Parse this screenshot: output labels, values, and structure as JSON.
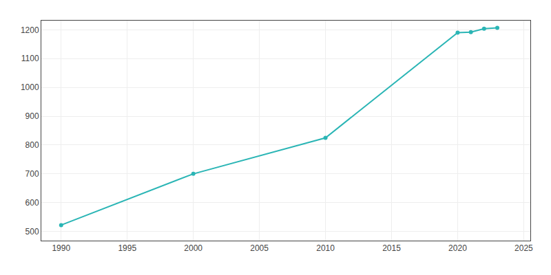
{
  "chart_data": {
    "type": "line",
    "x": [
      1990,
      2000,
      2010,
      2020,
      2021,
      2022,
      2023
    ],
    "values": [
      522,
      700,
      825,
      1190,
      1192,
      1204,
      1207
    ],
    "color": "#2ab5b5",
    "marker": "circle",
    "xlim": [
      1988.5,
      2025.5
    ],
    "ylim": [
      468,
      1232
    ],
    "xticks": [
      1990,
      1995,
      2000,
      2005,
      2010,
      2015,
      2020,
      2025
    ],
    "yticks": [
      500,
      600,
      700,
      800,
      900,
      1000,
      1100,
      1200
    ],
    "grid": true
  }
}
